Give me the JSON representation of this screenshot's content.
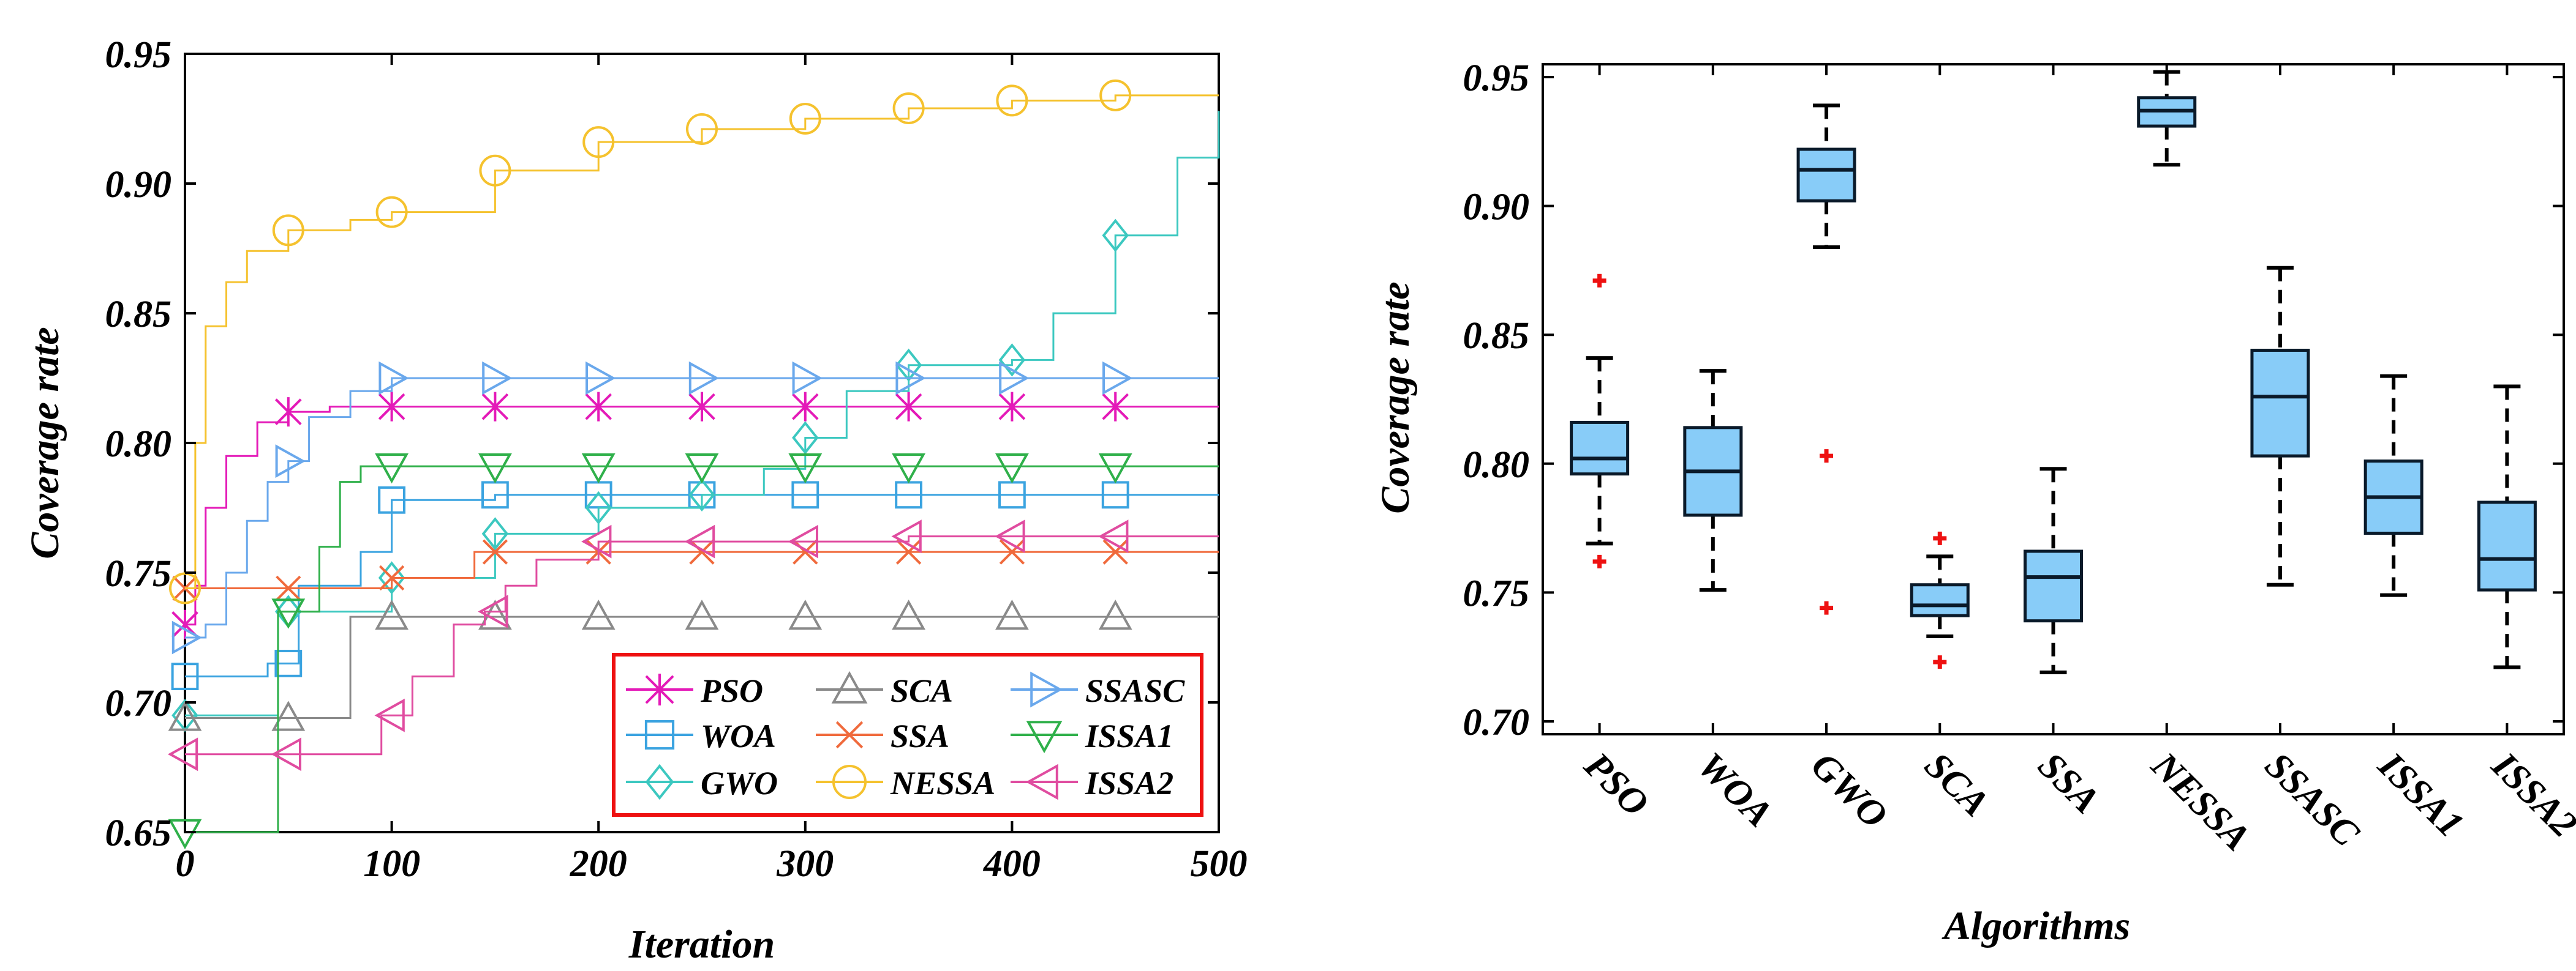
{
  "chart_data": [
    {
      "type": "line",
      "title": "",
      "xlabel": "Iteration",
      "ylabel": "Coverage rate",
      "xlim": [
        0,
        500
      ],
      "ylim": [
        0.65,
        0.95
      ],
      "xticks": [
        "0",
        "100",
        "200",
        "300",
        "400",
        "500"
      ],
      "yticks": [
        "0.65",
        "0.70",
        "0.75",
        "0.80",
        "0.85",
        "0.90",
        "0.95"
      ],
      "legend": {
        "placement": "bottom-right",
        "columns": 3,
        "border_color": "#ee1111"
      },
      "series": [
        {
          "name": "PSO",
          "color": "#e41ab8",
          "marker": "star",
          "points": [
            [
              0,
              0.73
            ],
            [
              5,
              0.745
            ],
            [
              10,
              0.775
            ],
            [
              20,
              0.795
            ],
            [
              35,
              0.808
            ],
            [
              50,
              0.812
            ],
            [
              70,
              0.814
            ],
            [
              500,
              0.814
            ]
          ]
        },
        {
          "name": "WOA",
          "color": "#3aa3e0",
          "marker": "square",
          "points": [
            [
              0,
              0.71
            ],
            [
              30,
              0.71
            ],
            [
              40,
              0.715
            ],
            [
              55,
              0.745
            ],
            [
              85,
              0.758
            ],
            [
              100,
              0.778
            ],
            [
              150,
              0.78
            ],
            [
              500,
              0.78
            ]
          ]
        },
        {
          "name": "GWO",
          "color": "#3cc8c0",
          "marker": "diamond",
          "points": [
            [
              0,
              0.695
            ],
            [
              35,
              0.695
            ],
            [
              45,
              0.735
            ],
            [
              100,
              0.748
            ],
            [
              150,
              0.765
            ],
            [
              200,
              0.775
            ],
            [
              250,
              0.78
            ],
            [
              280,
              0.79
            ],
            [
              300,
              0.802
            ],
            [
              320,
              0.82
            ],
            [
              350,
              0.83
            ],
            [
              400,
              0.832
            ],
            [
              420,
              0.85
            ],
            [
              450,
              0.88
            ],
            [
              480,
              0.91
            ],
            [
              500,
              0.928
            ]
          ]
        },
        {
          "name": "SCA",
          "color": "#8a8a8a",
          "marker": "triangle-up",
          "points": [
            [
              0,
              0.694
            ],
            [
              75,
              0.694
            ],
            [
              80,
              0.733
            ],
            [
              500,
              0.733
            ]
          ]
        },
        {
          "name": "SSA",
          "color": "#f06a3c",
          "marker": "x",
          "points": [
            [
              0,
              0.744
            ],
            [
              50,
              0.744
            ],
            [
              100,
              0.748
            ],
            [
              140,
              0.758
            ],
            [
              500,
              0.758
            ]
          ]
        },
        {
          "name": "NESSA",
          "color": "#f5c22e",
          "marker": "circle",
          "points": [
            [
              0,
              0.744
            ],
            [
              5,
              0.8
            ],
            [
              10,
              0.845
            ],
            [
              20,
              0.862
            ],
            [
              30,
              0.874
            ],
            [
              50,
              0.882
            ],
            [
              80,
              0.886
            ],
            [
              100,
              0.889
            ],
            [
              150,
              0.905
            ],
            [
              200,
              0.916
            ],
            [
              250,
              0.921
            ],
            [
              300,
              0.925
            ],
            [
              350,
              0.929
            ],
            [
              400,
              0.932
            ],
            [
              450,
              0.934
            ],
            [
              500,
              0.934
            ]
          ]
        },
        {
          "name": "SSASC",
          "color": "#6aa8ec",
          "marker": "triangle-right",
          "points": [
            [
              0,
              0.725
            ],
            [
              10,
              0.73
            ],
            [
              20,
              0.75
            ],
            [
              30,
              0.77
            ],
            [
              40,
              0.785
            ],
            [
              50,
              0.793
            ],
            [
              60,
              0.81
            ],
            [
              80,
              0.82
            ],
            [
              100,
              0.825
            ],
            [
              500,
              0.825
            ]
          ]
        },
        {
          "name": "ISSA1",
          "color": "#2fb04a",
          "marker": "triangle-down",
          "points": [
            [
              0,
              0.65
            ],
            [
              38,
              0.65
            ],
            [
              45,
              0.735
            ],
            [
              65,
              0.76
            ],
            [
              75,
              0.785
            ],
            [
              85,
              0.791
            ],
            [
              500,
              0.791
            ]
          ]
        },
        {
          "name": "ISSA2",
          "color": "#e04ca0",
          "marker": "triangle-left",
          "points": [
            [
              0,
              0.68
            ],
            [
              80,
              0.68
            ],
            [
              95,
              0.695
            ],
            [
              110,
              0.71
            ],
            [
              130,
              0.73
            ],
            [
              145,
              0.735
            ],
            [
              155,
              0.745
            ],
            [
              170,
              0.755
            ],
            [
              200,
              0.762
            ],
            [
              250,
              0.762
            ],
            [
              350,
              0.764
            ],
            [
              400,
              0.764
            ],
            [
              500,
              0.764
            ]
          ]
        }
      ]
    },
    {
      "type": "box",
      "title": "",
      "xlabel": "Algorithms",
      "ylabel": "Coverage rate",
      "ylim": [
        0.695,
        0.955
      ],
      "yticks": [
        "0.70",
        "0.75",
        "0.80",
        "0.85",
        "0.90",
        "0.95"
      ],
      "box_fill": "#88ccf8",
      "outlier_color": "#ee1111",
      "categories": [
        "PSO",
        "WOA",
        "GWO",
        "SCA",
        "SSA",
        "NESSA",
        "SSASC",
        "ISSA1",
        "ISSA2"
      ],
      "boxes": [
        {
          "name": "PSO",
          "whisker_low": 0.769,
          "q1": 0.796,
          "median": 0.802,
          "q3": 0.816,
          "whisker_high": 0.841,
          "outliers": [
            0.871,
            0.762
          ]
        },
        {
          "name": "WOA",
          "whisker_low": 0.751,
          "q1": 0.78,
          "median": 0.797,
          "q3": 0.814,
          "whisker_high": 0.836,
          "outliers": []
        },
        {
          "name": "GWO",
          "whisker_low": 0.884,
          "q1": 0.902,
          "median": 0.914,
          "q3": 0.922,
          "whisker_high": 0.939,
          "outliers": [
            0.803,
            0.744
          ]
        },
        {
          "name": "SCA",
          "whisker_low": 0.733,
          "q1": 0.741,
          "median": 0.745,
          "q3": 0.753,
          "whisker_high": 0.764,
          "outliers": [
            0.771,
            0.723
          ]
        },
        {
          "name": "SSA",
          "whisker_low": 0.719,
          "q1": 0.739,
          "median": 0.756,
          "q3": 0.766,
          "whisker_high": 0.798,
          "outliers": []
        },
        {
          "name": "NESSA",
          "whisker_low": 0.916,
          "q1": 0.931,
          "median": 0.937,
          "q3": 0.942,
          "whisker_high": 0.952,
          "outliers": []
        },
        {
          "name": "SSASC",
          "whisker_low": 0.753,
          "q1": 0.803,
          "median": 0.826,
          "q3": 0.844,
          "whisker_high": 0.876,
          "outliers": []
        },
        {
          "name": "ISSA1",
          "whisker_low": 0.749,
          "q1": 0.773,
          "median": 0.787,
          "q3": 0.801,
          "whisker_high": 0.834,
          "outliers": []
        },
        {
          "name": "ISSA2",
          "whisker_low": 0.721,
          "q1": 0.751,
          "median": 0.763,
          "q3": 0.785,
          "whisker_high": 0.83,
          "outliers": []
        }
      ]
    }
  ]
}
